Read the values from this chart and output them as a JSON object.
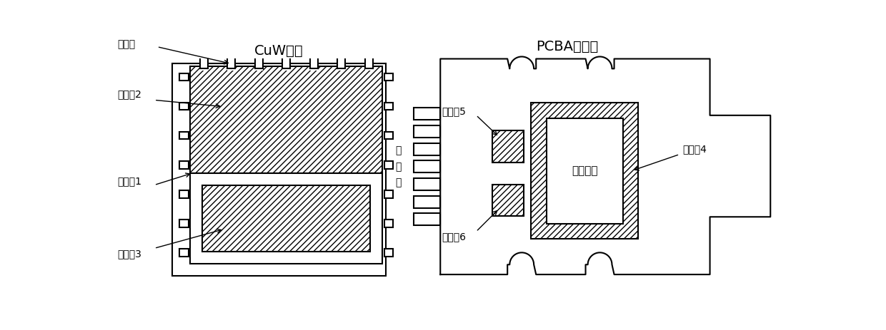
{
  "bg_color": "#ffffff",
  "line_color": "#000000",
  "title_left": "CuW底座",
  "title_right": "PCBA电路板",
  "label_jiaocan": "导胶槽",
  "label_face1": "配合面1",
  "label_face2": "配合面2",
  "label_face3": "配合面3",
  "label_face4": "配合面4",
  "label_face5": "配合面5",
  "label_face6": "配合面6",
  "label_jinshouzi": "金\n手\n指",
  "label_kaichuang": "开窗区域",
  "font_size_title": 14,
  "font_size_label": 10
}
